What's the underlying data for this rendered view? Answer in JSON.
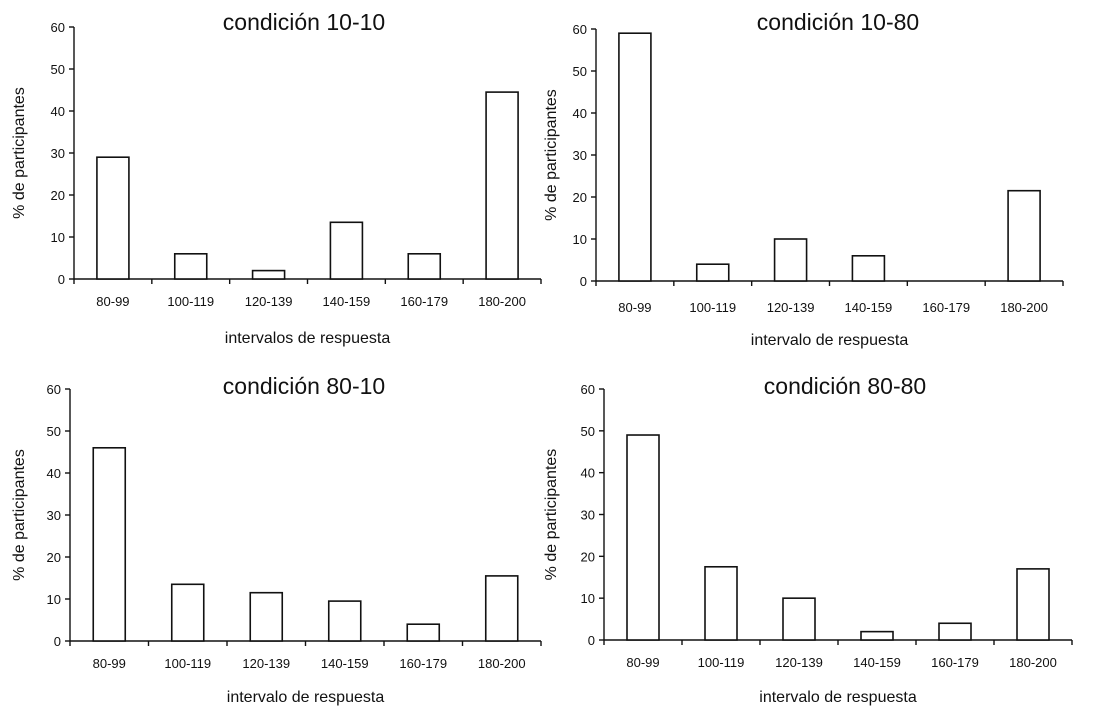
{
  "chart_data": [
    {
      "type": "bar",
      "title": "condición 10-10",
      "xlabel": "intervalos de respuesta",
      "ylabel": "% de participantes",
      "categories": [
        "80-99",
        "100-119",
        "120-139",
        "140-159",
        "160-179",
        "180-200"
      ],
      "values": [
        29,
        6,
        2,
        13.5,
        6,
        44.5
      ],
      "ylim": [
        0,
        60
      ],
      "yticks": [
        0,
        10,
        20,
        30,
        40,
        50,
        60
      ],
      "grid": false,
      "legend": "none"
    },
    {
      "type": "bar",
      "title": "condición 10-80",
      "xlabel": "intervalo de respuesta",
      "ylabel": "% de participantes",
      "categories": [
        "80-99",
        "100-119",
        "120-139",
        "140-159",
        "160-179",
        "180-200"
      ],
      "values": [
        59,
        4,
        10,
        6,
        0,
        21.5
      ],
      "ylim": [
        0,
        60
      ],
      "yticks": [
        0,
        10,
        20,
        30,
        40,
        50,
        60
      ],
      "grid": false,
      "legend": "none"
    },
    {
      "type": "bar",
      "title": "condición 80-10",
      "xlabel": "intervalo de respuesta",
      "ylabel": "% de participantes",
      "categories": [
        "80-99",
        "100-119",
        "120-139",
        "140-159",
        "160-179",
        "180-200"
      ],
      "values": [
        46,
        13.5,
        11.5,
        9.5,
        4,
        15.5
      ],
      "ylim": [
        0,
        60
      ],
      "yticks": [
        0,
        10,
        20,
        30,
        40,
        50,
        60
      ],
      "grid": false,
      "legend": "none"
    },
    {
      "type": "bar",
      "title": "condición 80-80",
      "xlabel": "intervalo de respuesta",
      "ylabel": "% de participantes",
      "categories": [
        "80-99",
        "100-119",
        "120-139",
        "140-159",
        "160-179",
        "180-200"
      ],
      "values": [
        49,
        17.5,
        10,
        2,
        4,
        17
      ],
      "ylim": [
        0,
        60
      ],
      "yticks": [
        0,
        10,
        20,
        30,
        40,
        50,
        60
      ],
      "grid": false,
      "legend": "none"
    }
  ]
}
